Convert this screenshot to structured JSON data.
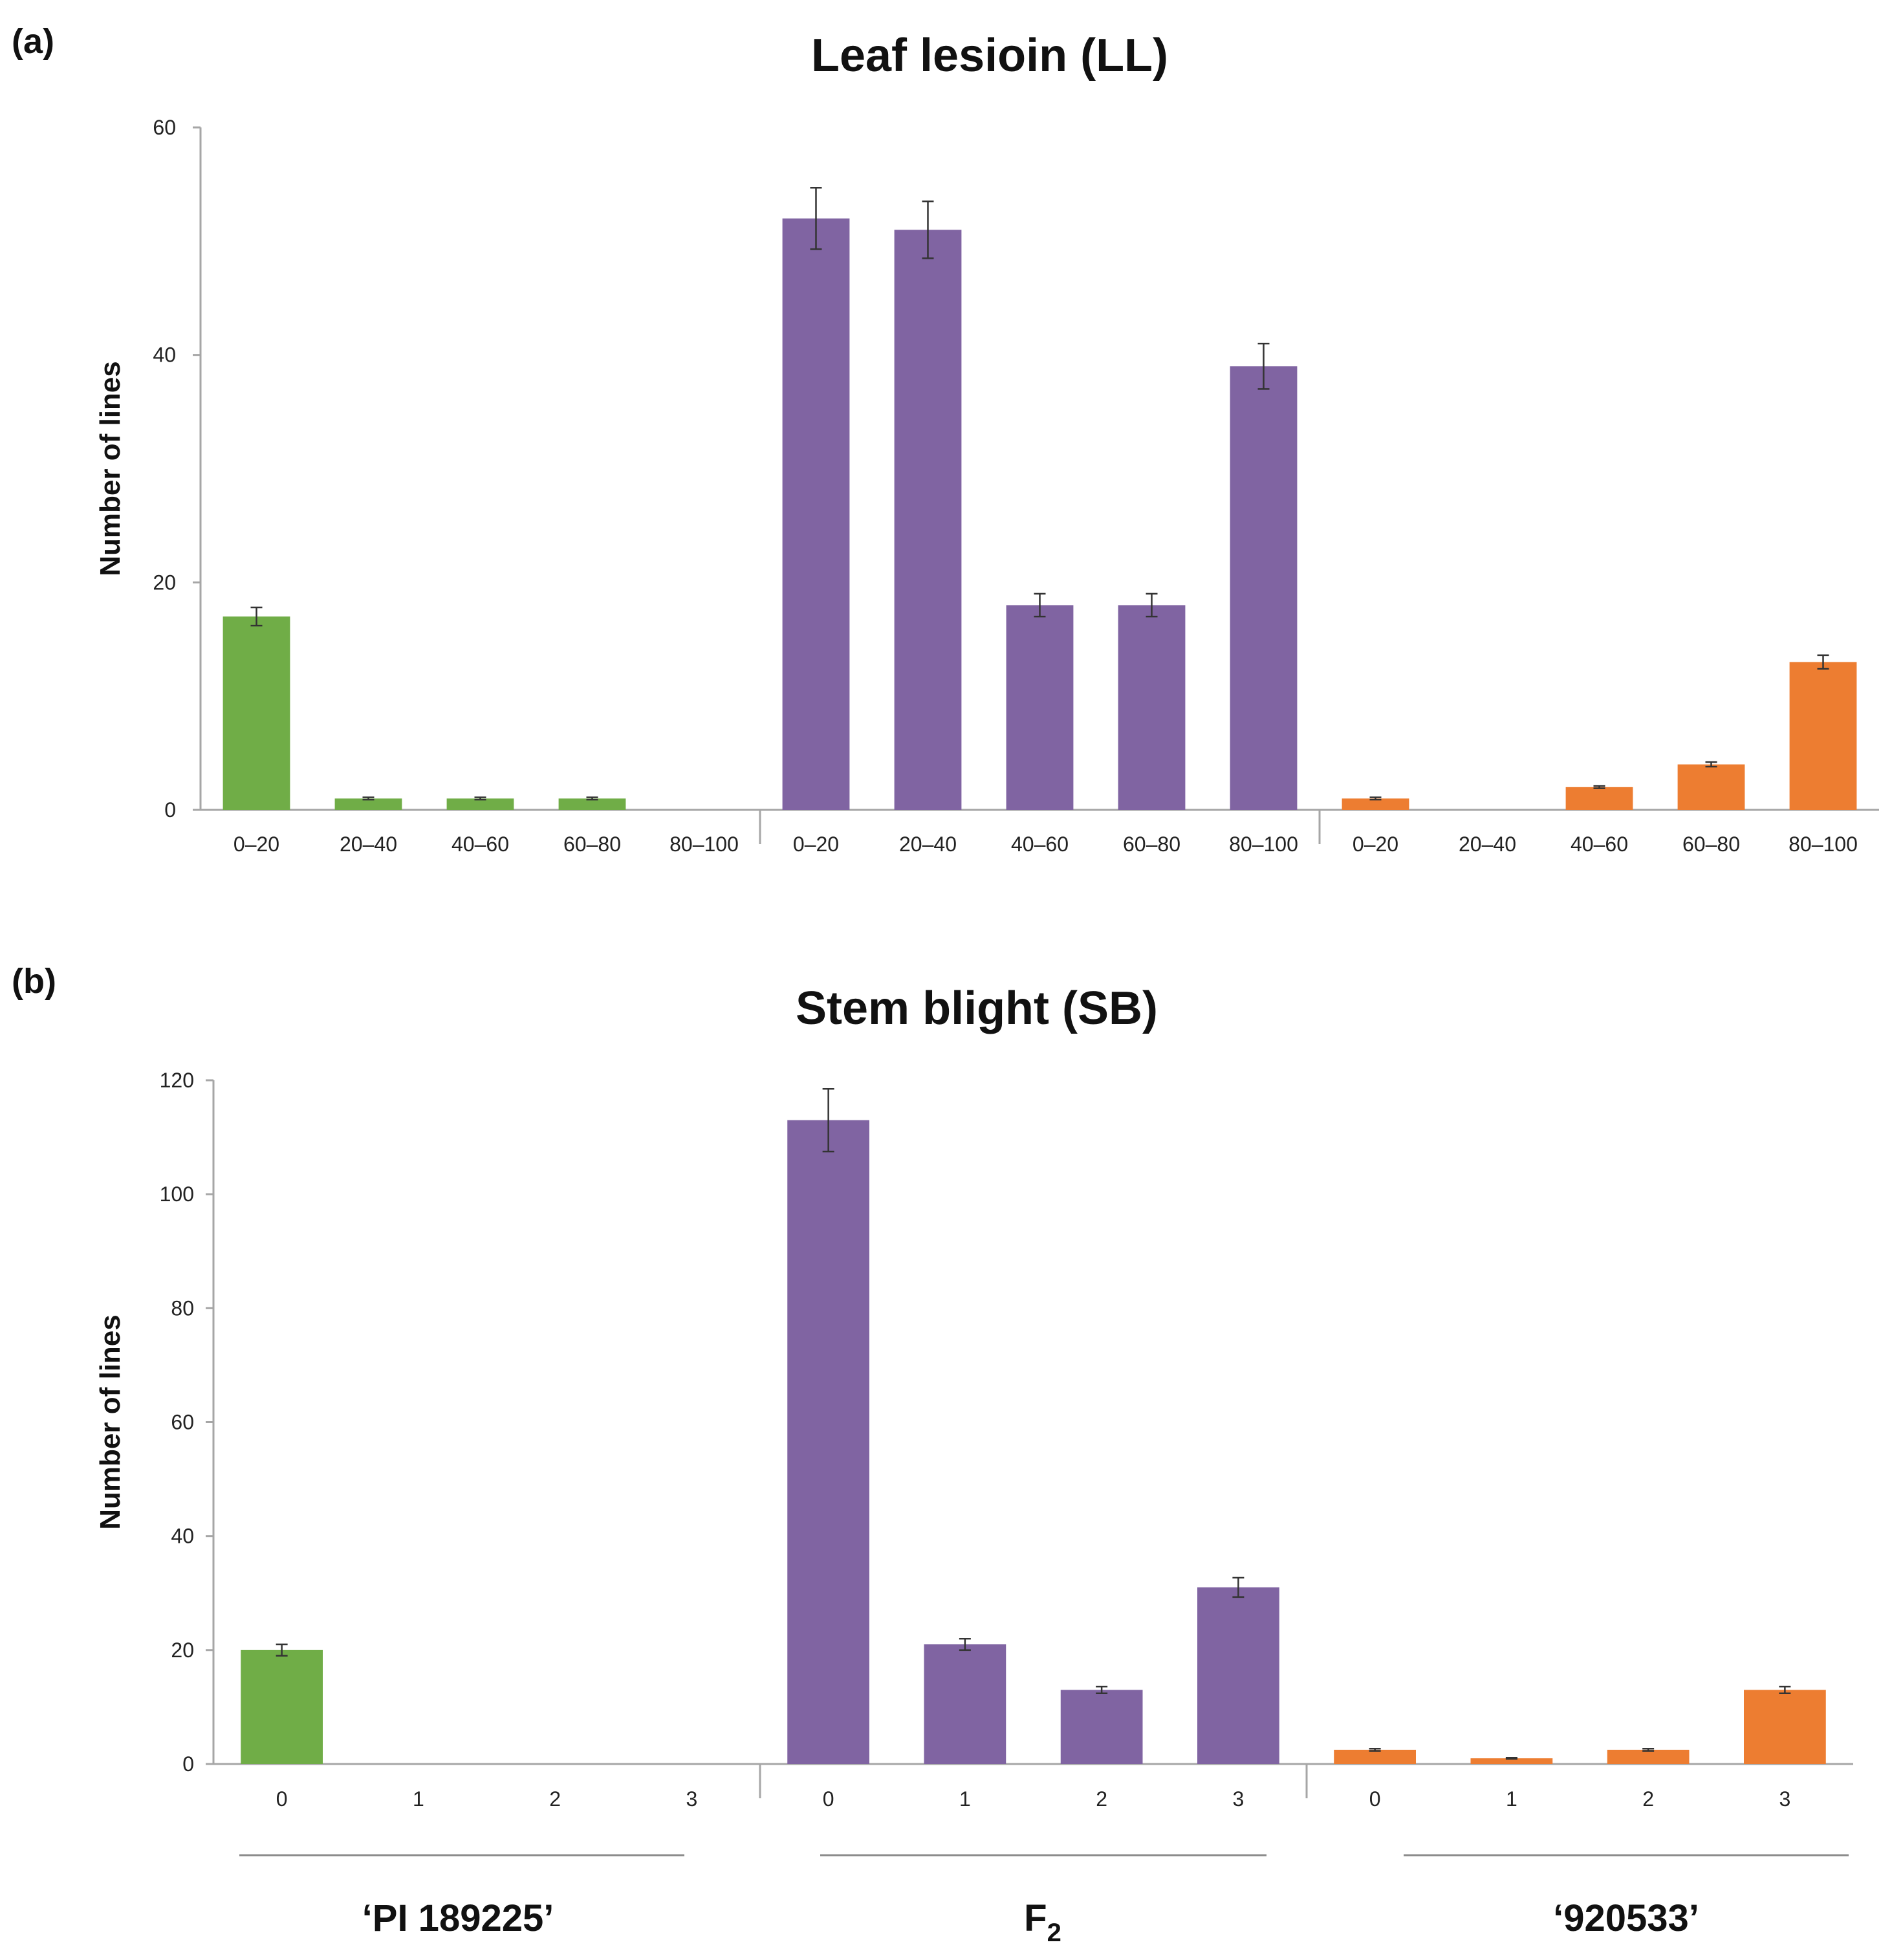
{
  "panel_labels": [
    "(a)",
    "(b)"
  ],
  "group_labels": {
    "pi": "‘PI 189225’",
    "f2_base": "F",
    "f2_sub": "2",
    "s920533": "‘920533’"
  },
  "colors": {
    "PI 189225": "#70ad47",
    "F2": "#8064a2",
    "920533": "#ed7d31"
  },
  "chart_data": [
    {
      "type": "bar",
      "title": "Leaf lesioin (LL)",
      "xlabel": "",
      "ylabel": "Number of lines",
      "ylim": [
        0,
        60
      ],
      "yticks": [
        0,
        20,
        40,
        60
      ],
      "categories": [
        "0–20",
        "20–40",
        "40–60",
        "60–80",
        "80–100"
      ],
      "series": [
        {
          "name": "PI 189225",
          "values": [
            17,
            1,
            1,
            1,
            0
          ],
          "errors": [
            0.8,
            0.1,
            0.1,
            0.1,
            0
          ]
        },
        {
          "name": "F2",
          "values": [
            52,
            51,
            18,
            18,
            39
          ],
          "errors": [
            2.7,
            2.5,
            1.0,
            1.0,
            2.0
          ]
        },
        {
          "name": "920533",
          "values": [
            1,
            0,
            2,
            4,
            13
          ],
          "errors": [
            0.1,
            0,
            0.1,
            0.2,
            0.6
          ]
        }
      ]
    },
    {
      "type": "bar",
      "title": "Stem blight (SB)",
      "xlabel": "",
      "ylabel": "Number of lines",
      "ylim": [
        0,
        120
      ],
      "yticks": [
        0,
        20,
        40,
        60,
        80,
        100,
        120
      ],
      "categories": [
        "0",
        "1",
        "2",
        "3"
      ],
      "series": [
        {
          "name": "PI 189225",
          "values": [
            20,
            0,
            0,
            0
          ],
          "errors": [
            1.0,
            0,
            0,
            0
          ]
        },
        {
          "name": "F2",
          "values": [
            113,
            21,
            13,
            31
          ],
          "errors": [
            5.5,
            1.0,
            0.6,
            1.7
          ]
        },
        {
          "name": "920533",
          "values": [
            2.5,
            1,
            2.5,
            13
          ],
          "errors": [
            0.2,
            0.1,
            0.2,
            0.6
          ]
        }
      ]
    }
  ]
}
